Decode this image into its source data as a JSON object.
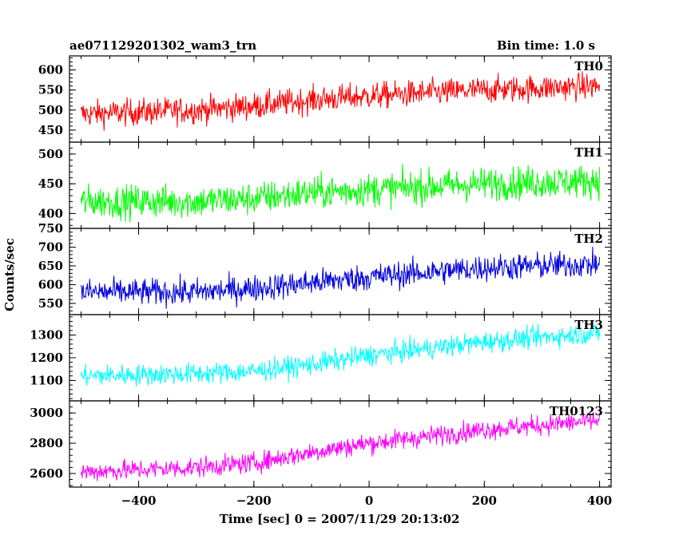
{
  "header": {
    "title": "ae071129201302_wam3_trn",
    "bin_time": "Bin time: 1.0 s"
  },
  "axes": {
    "ylabel": "Counts/sec",
    "xlabel": "Time [sec] 0 = 2007/11/29 20:13:02",
    "xlim": [
      -520,
      420
    ],
    "xticks": [
      -400,
      -200,
      0,
      200,
      400
    ]
  },
  "chart_data": [
    {
      "type": "line",
      "name": "TH0",
      "color": "#ff0000",
      "x_start": -500,
      "x_end": 400,
      "trend": [
        [
          -500,
          490
        ],
        [
          -300,
          500
        ],
        [
          -200,
          510
        ],
        [
          -100,
          525
        ],
        [
          0,
          535
        ],
        [
          200,
          550
        ],
        [
          400,
          560
        ]
      ],
      "noise_amplitude": 30,
      "ylim": [
        420,
        635
      ],
      "yticks": [
        450,
        500,
        550,
        600
      ]
    },
    {
      "type": "line",
      "name": "TH1",
      "color": "#00ff00",
      "x_start": -500,
      "x_end": 400,
      "trend": [
        [
          -500,
          420
        ],
        [
          -300,
          420
        ],
        [
          -200,
          425
        ],
        [
          -100,
          435
        ],
        [
          0,
          440
        ],
        [
          200,
          450
        ],
        [
          400,
          455
        ]
      ],
      "noise_amplitude": 25,
      "ylim": [
        375,
        520
      ],
      "yticks": [
        400,
        450,
        500
      ]
    },
    {
      "type": "line",
      "name": "TH2",
      "color": "#0000dd",
      "x_start": -500,
      "x_end": 400,
      "trend": [
        [
          -500,
          580
        ],
        [
          -300,
          580
        ],
        [
          -200,
          590
        ],
        [
          -100,
          605
        ],
        [
          0,
          620
        ],
        [
          200,
          645
        ],
        [
          400,
          655
        ]
      ],
      "noise_amplitude": 32,
      "ylim": [
        520,
        750
      ],
      "yticks": [
        550,
        600,
        650,
        700,
        750
      ]
    },
    {
      "type": "line",
      "name": "TH3",
      "color": "#00ffff",
      "x_start": -500,
      "x_end": 400,
      "trend": [
        [
          -500,
          1120
        ],
        [
          -300,
          1130
        ],
        [
          -200,
          1140
        ],
        [
          -100,
          1170
        ],
        [
          0,
          1210
        ],
        [
          200,
          1270
        ],
        [
          400,
          1310
        ]
      ],
      "noise_amplitude": 42,
      "ylim": [
        1010,
        1390
      ],
      "yticks": [
        1100,
        1200,
        1300
      ]
    },
    {
      "type": "line",
      "name": "TH0123",
      "color": "#ff00ff",
      "x_start": -500,
      "x_end": 400,
      "trend": [
        [
          -500,
          2610
        ],
        [
          -300,
          2640
        ],
        [
          -200,
          2670
        ],
        [
          -100,
          2740
        ],
        [
          0,
          2800
        ],
        [
          200,
          2890
        ],
        [
          400,
          2950
        ]
      ],
      "noise_amplitude": 60,
      "ylim": [
        2510,
        3080
      ],
      "yticks": [
        2600,
        2800,
        3000
      ]
    }
  ]
}
